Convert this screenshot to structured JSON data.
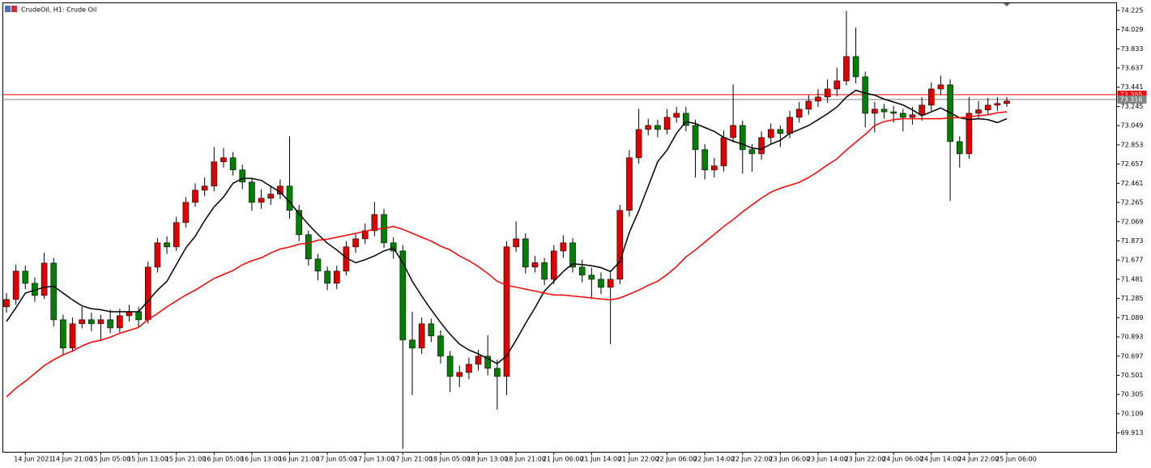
{
  "chart_data": {
    "type": "candlestick",
    "title": "CrudeOil, H1:  Crude Oil",
    "categories": [
      null,
      null,
      "14 Jun 2021",
      null,
      null,
      null,
      "14 Jun 21:00",
      null,
      null,
      null,
      "15 Jun 05:00",
      null,
      null,
      null,
      "15 Jun 13:00",
      null,
      null,
      null,
      "15 Jun 21:00",
      null,
      null,
      null,
      "16 Jun 05:00",
      null,
      null,
      null,
      "16 Jun 13:00",
      null,
      null,
      null,
      "16 Jun 21:00",
      null,
      null,
      null,
      "17 Jun 05:00",
      null,
      null,
      null,
      "17 Jun 13:00",
      null,
      null,
      null,
      "17 Jun 21:00",
      null,
      null,
      null,
      "18 Jun 05:00",
      null,
      null,
      null,
      "18 Jun 13:00",
      null,
      null,
      null,
      "18 Jun 21:00",
      null,
      null,
      null,
      "21 Jun 06:00",
      null,
      null,
      null,
      "21 Jun 14:00",
      null,
      null,
      null,
      "21 Jun 22:00",
      null,
      null,
      null,
      "22 Jun 06:00",
      null,
      null,
      null,
      "22 Jun 14:00",
      null,
      null,
      null,
      "22 Jun 22:00",
      null,
      null,
      null,
      "23 Jun 06:00",
      null,
      null,
      null,
      "23 Jun 14:00",
      null,
      null,
      null,
      "23 Jun 22:00",
      null,
      null,
      null,
      "24 Jun 06:00",
      null,
      null,
      null,
      "24 Jun 14:00",
      null,
      null,
      null,
      "24 Jun 22:00",
      null,
      null,
      null,
      "25 Jun 06:00"
    ],
    "open": [
      71.2,
      71.275,
      71.564,
      71.44,
      71.316,
      71.646,
      71.068,
      70.779,
      71.027,
      71.068,
      71.027,
      71.068,
      70.985,
      71.109,
      71.151,
      71.068,
      71.605,
      71.853,
      71.812,
      72.06,
      72.266,
      72.39,
      72.432,
      72.68,
      72.721,
      72.597,
      72.473,
      72.266,
      72.308,
      72.35,
      72.432,
      72.184,
      71.936,
      71.688,
      71.564,
      71.44,
      71.564,
      71.812,
      71.894,
      71.977,
      72.142,
      71.853,
      71.77,
      70.861,
      70.779,
      71.027,
      70.903,
      70.696,
      70.489,
      70.53,
      70.613,
      70.696,
      70.572,
      70.489,
      71.812,
      71.894,
      71.605,
      71.65,
      71.481,
      71.77,
      71.853,
      71.605,
      71.523,
      71.481,
      71.399,
      71.481,
      72.184,
      72.721,
      73.01,
      73.051,
      73.01,
      73.134,
      73.175,
      73.051,
      72.804,
      72.597,
      72.638,
      72.927,
      73.051,
      72.804,
      72.762,
      72.927,
      73.01,
      72.969,
      73.134,
      73.217,
      73.299,
      73.341,
      73.423,
      73.506,
      73.754,
      73.547,
      73.175,
      73.217,
      73.19,
      73.175,
      73.134,
      73.16,
      73.258,
      73.423,
      73.465,
      72.886,
      72.762,
      73.175,
      73.21,
      73.258,
      73.275
    ],
    "high": [
      71.34,
      71.63,
      71.62,
      71.5,
      71.75,
      71.7,
      71.12,
      71.09,
      71.2,
      71.14,
      71.12,
      71.17,
      71.18,
      71.22,
      71.2,
      71.66,
      71.9,
      71.92,
      72.12,
      72.32,
      72.46,
      72.52,
      72.83,
      72.82,
      72.78,
      72.65,
      72.52,
      72.4,
      72.44,
      72.5,
      72.94,
      72.24,
      71.98,
      71.74,
      71.61,
      71.62,
      71.87,
      71.95,
      72.05,
      72.27,
      72.2,
      71.91,
      71.83,
      71.15,
      71.09,
      71.08,
      70.96,
      70.75,
      70.6,
      70.68,
      70.76,
      70.91,
      70.66,
      71.87,
      72.07,
      71.95,
      71.72,
      71.7,
      71.83,
      71.93,
      71.9,
      71.68,
      71.6,
      71.55,
      71.55,
      72.24,
      72.8,
      73.22,
      73.12,
      73.11,
      73.22,
      73.24,
      73.24,
      73.11,
      72.86,
      72.72,
      73.0,
      73.47,
      73.1,
      72.86,
      72.99,
      73.07,
      73.05,
      73.2,
      73.29,
      73.36,
      73.42,
      73.52,
      73.64,
      74.22,
      74.05,
      73.6,
      73.29,
      73.27,
      73.25,
      73.22,
      73.24,
      73.34,
      73.49,
      73.56,
      73.52,
      72.94,
      73.34,
      73.3,
      73.33,
      73.34,
      73.34
    ],
    "low": [
      71.14,
      71.22,
      71.38,
      71.25,
      71.28,
      71.0,
      70.7,
      70.74,
      70.98,
      70.95,
      70.85,
      70.93,
      70.94,
      71.05,
      70.99,
      71.03,
      71.55,
      71.74,
      71.77,
      72.01,
      72.22,
      72.33,
      72.38,
      72.62,
      72.54,
      72.4,
      72.18,
      72.2,
      72.24,
      72.3,
      72.1,
      71.87,
      71.62,
      71.47,
      71.37,
      71.38,
      71.52,
      71.75,
      71.84,
      71.92,
      71.8,
      71.69,
      69.75,
      70.3,
      70.72,
      70.84,
      70.62,
      70.33,
      70.38,
      70.46,
      70.55,
      70.5,
      70.15,
      70.3,
      71.76,
      71.54,
      71.55,
      71.42,
      71.43,
      71.7,
      71.55,
      71.45,
      71.28,
      71.33,
      70.82,
      71.43,
      72.12,
      72.66,
      72.95,
      72.93,
      72.96,
      73.08,
      72.99,
      72.52,
      72.5,
      72.52,
      72.58,
      72.88,
      72.56,
      72.58,
      72.7,
      72.86,
      72.83,
      72.92,
      73.08,
      73.16,
      73.24,
      73.28,
      73.35,
      73.46,
      73.48,
      73.03,
      72.98,
      73.12,
      73.08,
      72.99,
      73.06,
      73.1,
      73.2,
      73.36,
      72.28,
      72.62,
      72.71,
      73.12,
      73.16,
      73.2,
      73.24
    ],
    "close": [
      71.275,
      71.564,
      71.44,
      71.316,
      71.646,
      71.068,
      70.779,
      71.027,
      71.068,
      71.027,
      71.068,
      70.985,
      71.109,
      71.151,
      71.068,
      71.605,
      71.853,
      71.812,
      72.06,
      72.266,
      72.39,
      72.432,
      72.68,
      72.721,
      72.597,
      72.473,
      72.266,
      72.308,
      72.35,
      72.432,
      72.184,
      71.936,
      71.688,
      71.564,
      71.44,
      71.564,
      71.812,
      71.894,
      71.977,
      72.142,
      71.853,
      71.77,
      70.861,
      70.779,
      71.027,
      70.903,
      70.696,
      70.489,
      70.53,
      70.613,
      70.696,
      70.572,
      70.489,
      71.812,
      71.894,
      71.605,
      71.65,
      71.481,
      71.77,
      71.853,
      71.605,
      71.523,
      71.481,
      71.399,
      71.481,
      72.184,
      72.721,
      73.01,
      73.051,
      73.01,
      73.134,
      73.175,
      73.051,
      72.804,
      72.597,
      72.638,
      72.927,
      73.051,
      72.804,
      72.762,
      72.927,
      73.01,
      72.969,
      73.134,
      73.217,
      73.299,
      73.341,
      73.423,
      73.506,
      73.754,
      73.547,
      73.175,
      73.217,
      73.19,
      73.175,
      73.134,
      73.16,
      73.258,
      73.423,
      73.465,
      72.886,
      72.762,
      73.175,
      73.21,
      73.258,
      73.275,
      73.3
    ],
    "up_color": "#e00000",
    "down_color": "#008000",
    "series": [
      {
        "color": "#000000",
        "values": [
          71.05,
          71.19,
          71.34,
          71.37,
          71.4,
          71.41,
          71.34,
          71.27,
          71.21,
          71.18,
          71.17,
          71.15,
          71.15,
          71.15,
          71.15,
          71.26,
          71.37,
          71.46,
          71.63,
          71.8,
          71.92,
          72.08,
          72.22,
          72.32,
          72.46,
          72.51,
          72.51,
          72.49,
          72.43,
          72.37,
          72.27,
          72.15,
          72.04,
          71.94,
          71.85,
          71.78,
          71.7,
          71.65,
          71.68,
          71.72,
          71.77,
          71.8,
          71.65,
          71.46,
          71.31,
          71.17,
          71.04,
          70.92,
          70.82,
          70.76,
          70.72,
          70.67,
          70.62,
          70.7,
          70.86,
          71.03,
          71.19,
          71.36,
          71.46,
          71.56,
          71.64,
          71.63,
          71.62,
          71.6,
          71.56,
          71.66,
          71.96,
          72.18,
          72.43,
          72.68,
          72.8,
          72.97,
          73.09,
          73.07,
          73.03,
          72.99,
          72.93,
          72.89,
          72.86,
          72.82,
          72.81,
          72.86,
          72.9,
          72.97,
          73.01,
          73.05,
          73.11,
          73.17,
          73.24,
          73.34,
          73.41,
          73.38,
          73.36,
          73.32,
          73.29,
          73.26,
          73.21,
          73.15,
          73.19,
          73.23,
          73.18,
          73.13,
          73.11,
          73.12,
          73.11,
          73.08,
          73.12
        ]
      },
      {
        "color": "#ff0000",
        "values": [
          70.28,
          70.37,
          70.44,
          70.52,
          70.6,
          70.66,
          70.71,
          70.75,
          70.8,
          70.84,
          70.86,
          70.89,
          70.93,
          70.96,
          70.99,
          71.07,
          71.13,
          71.2,
          71.26,
          71.32,
          71.37,
          71.43,
          71.49,
          71.53,
          71.57,
          71.63,
          71.67,
          71.7,
          71.75,
          71.79,
          71.81,
          71.84,
          71.85,
          71.88,
          71.89,
          71.91,
          71.93,
          71.95,
          71.97,
          71.99,
          72.0,
          72.02,
          71.99,
          71.95,
          71.91,
          71.87,
          71.82,
          71.78,
          71.72,
          71.67,
          71.61,
          71.54,
          71.46,
          71.42,
          71.4,
          71.38,
          71.36,
          71.34,
          71.32,
          71.32,
          71.31,
          71.3,
          71.29,
          71.28,
          71.27,
          71.29,
          71.33,
          71.37,
          71.42,
          71.46,
          71.53,
          71.61,
          71.71,
          71.78,
          71.86,
          71.94,
          72.02,
          72.09,
          72.17,
          72.24,
          72.31,
          72.37,
          72.41,
          72.44,
          72.47,
          72.52,
          72.58,
          72.65,
          72.71,
          72.8,
          72.88,
          72.96,
          73.05,
          73.09,
          73.11,
          73.12,
          73.12,
          73.12,
          73.12,
          73.12,
          73.13,
          73.13,
          73.14,
          73.15,
          73.16,
          73.18,
          73.19
        ]
      }
    ],
    "price_lines": [
      {
        "value": 73.365,
        "color": "#ff0000"
      },
      {
        "value": 73.316,
        "color": "#808080"
      }
    ],
    "ylim": [
      69.72,
      74.29
    ],
    "yticks": [
      74.225,
      74.029,
      73.833,
      73.637,
      73.441,
      73.245,
      73.049,
      72.853,
      72.657,
      72.461,
      72.265,
      72.069,
      71.873,
      71.677,
      71.481,
      71.285,
      71.089,
      70.893,
      70.697,
      70.501,
      70.305,
      70.109,
      69.913
    ]
  }
}
